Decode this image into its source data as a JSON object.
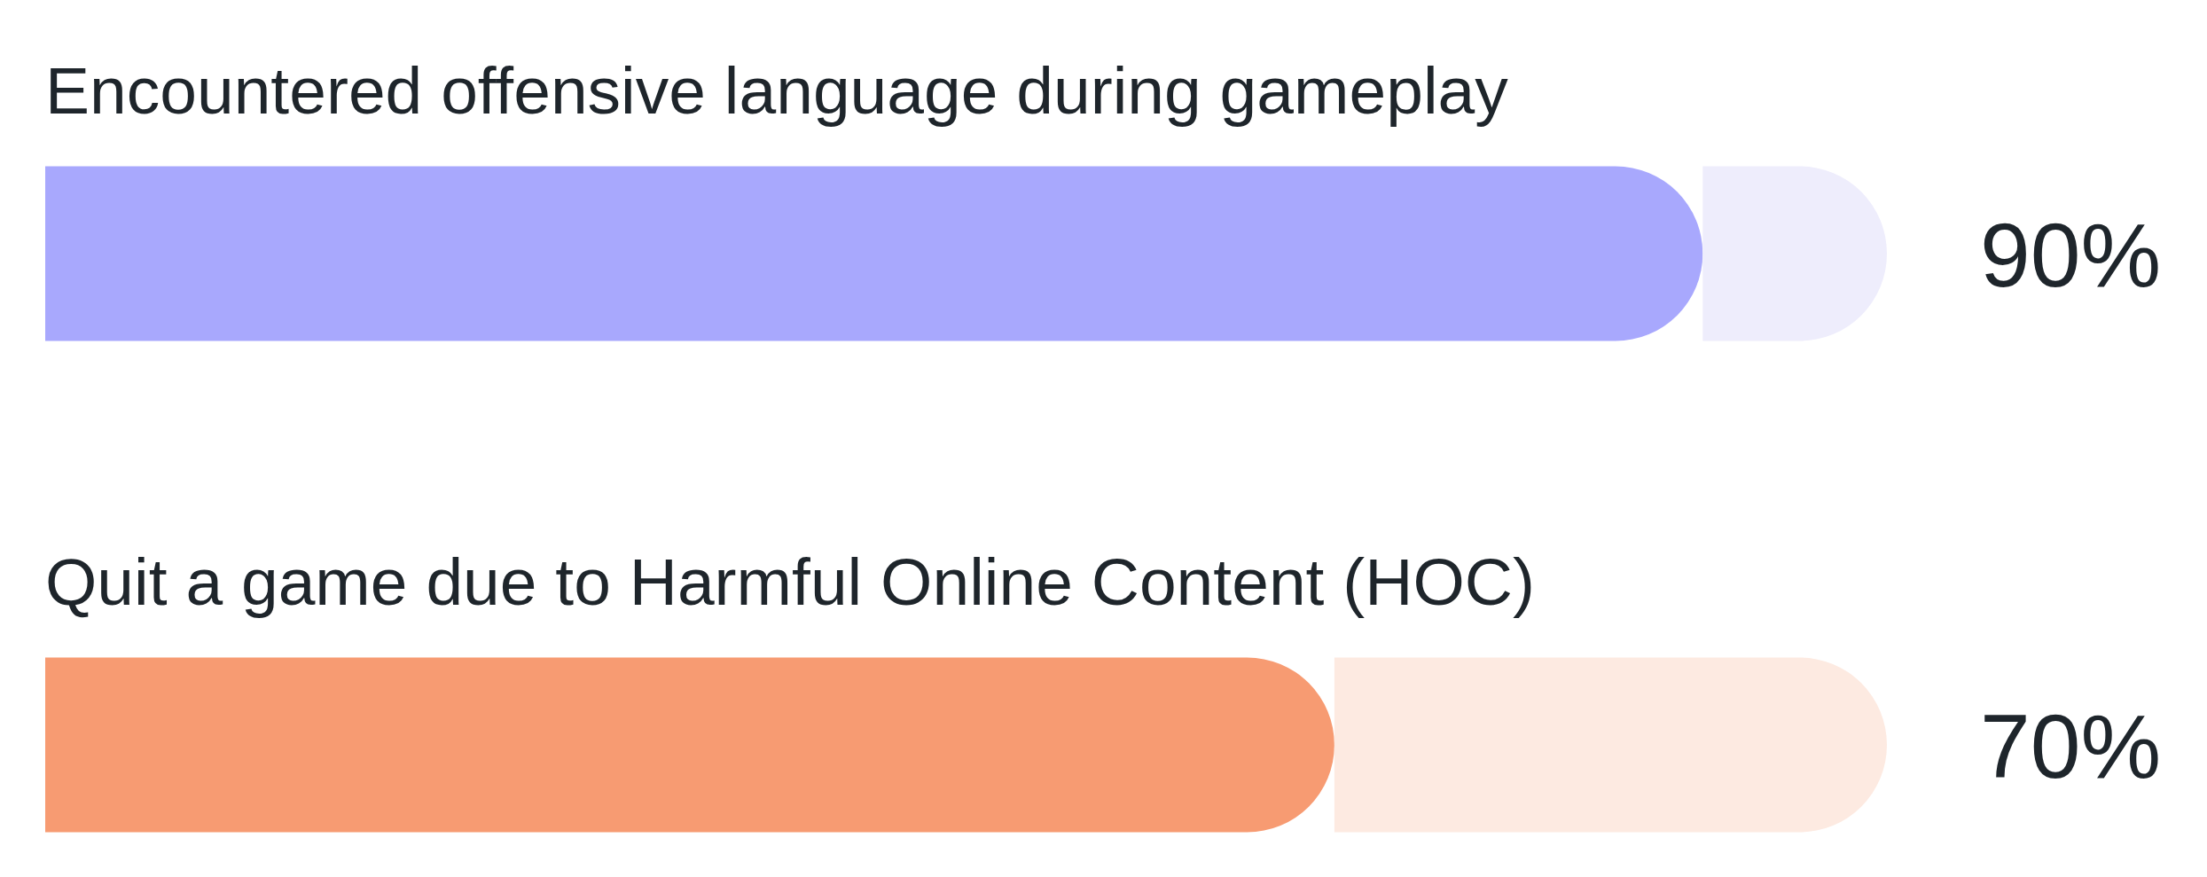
{
  "chart_data": {
    "type": "bar",
    "orientation": "horizontal",
    "stacked": true,
    "categories": [
      "Encountered offensive language during gameplay",
      "Quit a game due to Harmful Online Content (HOC)"
    ],
    "series": [
      {
        "colors": [
          "#a8a8fd",
          "#f79b72"
        ],
        "values": [
          90,
          70
        ],
        "value_labels": [
          "90%",
          "70%"
        ]
      },
      {
        "colors": [
          "#eeedfc",
          "#fdeae1"
        ],
        "values": [
          10,
          30
        ]
      }
    ],
    "xlim": [
      0,
      100
    ],
    "tick_labels": "y"
  }
}
